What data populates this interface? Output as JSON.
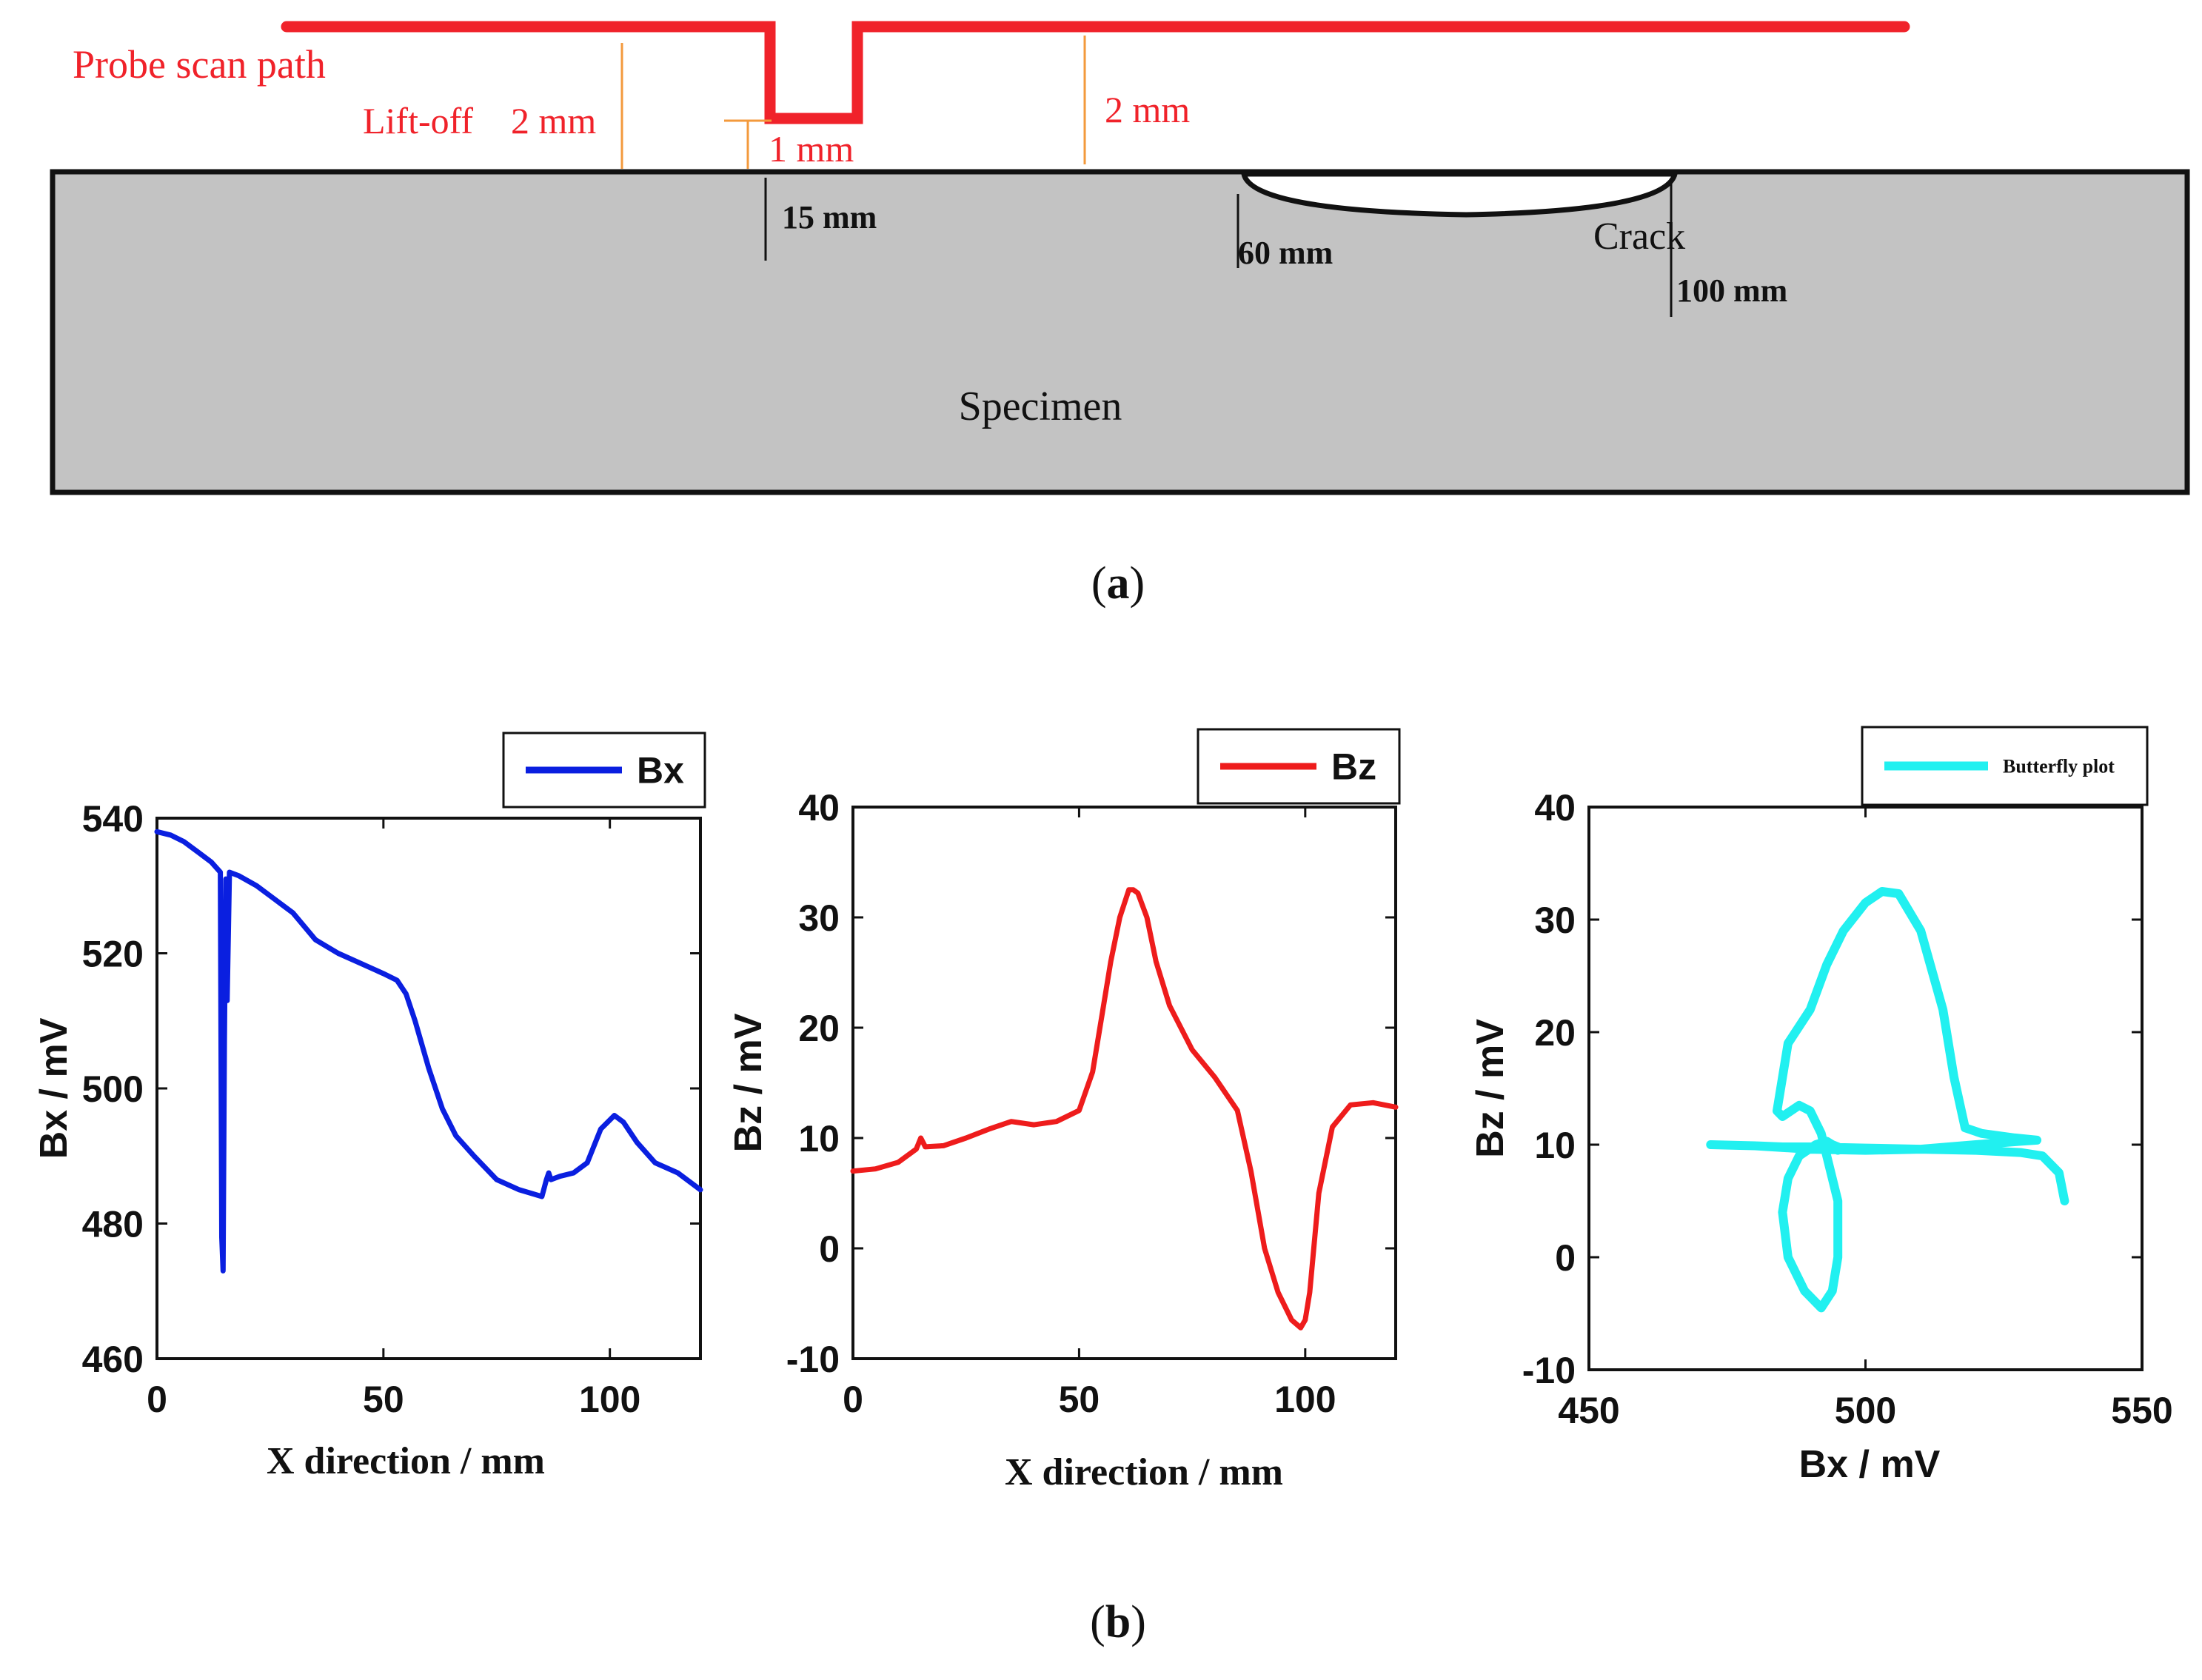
{
  "diagram": {
    "probe_scan_path": "Probe scan path",
    "lift_off_label": "Lift-off",
    "lift_off_value": "2 mm",
    "step_depth": "1 mm",
    "right_lift_off": "2 mm",
    "probe_dip_position": "15 mm",
    "crack_start": "60 mm",
    "crack_end": "100 mm",
    "crack_label": "Crack",
    "specimen_label": "Specimen",
    "colors": {
      "probe_path": "#f0222a",
      "dimension_lines": "#f39a3c",
      "specimen_fill": "#c3c3c3"
    }
  },
  "captions": {
    "a": "a",
    "b": "b"
  },
  "chart_data": [
    {
      "type": "line",
      "legend": "Bx",
      "legend_position": "top-right",
      "color": "#0a1fe0",
      "xlabel": "X direction / mm",
      "ylabel": "Bx / mV",
      "xlim": [
        0,
        120
      ],
      "ylim": [
        460,
        540
      ],
      "xticks": [
        "0",
        "50",
        "100"
      ],
      "yticks": [
        "460",
        "480",
        "500",
        "520",
        "540"
      ],
      "x": [
        0,
        3,
        6,
        9,
        12,
        14,
        14.3,
        14.6,
        14.9,
        15.2,
        15.5,
        16,
        18,
        22,
        26,
        30,
        35,
        40,
        45,
        50,
        53,
        55,
        57,
        60,
        63,
        66,
        70,
        75,
        80,
        85,
        86,
        86.5,
        87,
        89,
        92,
        95,
        98,
        101,
        103,
        106,
        110,
        115,
        120
      ],
      "y": [
        538,
        537.5,
        536.5,
        535,
        533.5,
        532,
        478,
        473,
        507,
        531,
        513,
        532,
        531.5,
        530,
        528,
        526,
        522,
        520,
        518.5,
        517,
        516,
        514,
        510,
        503,
        497,
        493,
        490,
        486.5,
        485,
        484,
        486.5,
        487.5,
        486.5,
        487,
        487.5,
        489,
        494,
        496,
        495,
        492,
        489,
        487.5,
        485
      ]
    },
    {
      "type": "line",
      "legend": "Bz",
      "legend_position": "top-right",
      "color": "#ee1c1c",
      "xlabel": "X direction / mm",
      "ylabel": "Bz / mV",
      "xlim": [
        0,
        120
      ],
      "ylim": [
        -10,
        40
      ],
      "xticks": [
        "0",
        "50",
        "100"
      ],
      "yticks": [
        "-10",
        "0",
        "10",
        "20",
        "30",
        "40"
      ],
      "x": [
        0,
        5,
        10,
        14,
        15,
        16,
        20,
        25,
        30,
        35,
        40,
        45,
        50,
        53,
        55,
        57,
        59,
        61,
        62,
        63,
        65,
        67,
        70,
        75,
        80,
        85,
        88,
        91,
        94,
        97,
        99,
        100,
        101,
        103,
        106,
        110,
        115,
        120
      ],
      "y": [
        7,
        7.2,
        7.8,
        9,
        10,
        9.2,
        9.3,
        10,
        10.8,
        11.5,
        11.2,
        11.5,
        12.5,
        16,
        21,
        26,
        30,
        32.5,
        32.5,
        32.2,
        30,
        26,
        22,
        18,
        15.5,
        12.5,
        7,
        0,
        -4,
        -6.5,
        -7.2,
        -6.5,
        -4,
        5,
        11,
        13,
        13.2,
        12.8
      ]
    },
    {
      "type": "line",
      "legend": "Butterfly plot",
      "legend_position": "top-right",
      "color": "#21f0f0",
      "xlabel": "Bx / mV",
      "ylabel": "Bz / mV",
      "xlim": [
        450,
        550
      ],
      "ylim": [
        -10,
        40
      ],
      "xticks": [
        "450",
        "500",
        "550"
      ],
      "yticks": [
        "-10",
        "0",
        "10",
        "20",
        "30",
        "40"
      ],
      "x": [
        536,
        535,
        532,
        528,
        520,
        510,
        500,
        490,
        485,
        480,
        472,
        480,
        490,
        500,
        510,
        520,
        528,
        531,
        527,
        521,
        518,
        516,
        514,
        510,
        506,
        503,
        500,
        496,
        493,
        490,
        486,
        484,
        485,
        488,
        490,
        492,
        495,
        495,
        494,
        492,
        489,
        486,
        485,
        486,
        488,
        491,
        493,
        494,
        495,
        495
      ],
      "y": [
        5,
        7.5,
        9,
        9.3,
        9.5,
        9.6,
        9.7,
        9.8,
        9.8,
        9.9,
        10,
        9.9,
        9.6,
        9.5,
        9.6,
        10,
        10.3,
        10.4,
        10.6,
        11,
        11.5,
        16,
        22,
        29,
        32.3,
        32.5,
        31.5,
        29,
        26,
        22,
        19,
        13,
        12.5,
        13.5,
        13,
        11,
        5,
        0,
        -3,
        -4.5,
        -3,
        0,
        4,
        7,
        9,
        10,
        10.3,
        10,
        9.8,
        9.5
      ]
    }
  ]
}
